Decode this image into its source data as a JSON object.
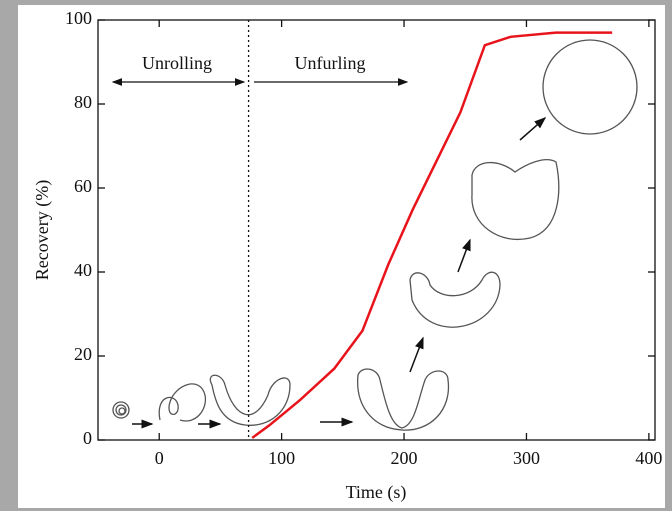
{
  "chart_data": {
    "type": "line",
    "x_label": "Time (s)",
    "y_label": "Recovery (%)",
    "x": [
      76,
      90,
      115,
      143,
      166,
      187,
      207,
      246,
      266,
      287,
      324,
      370
    ],
    "values": [
      0.5,
      3.5,
      9.5,
      17,
      26,
      41.7,
      54.8,
      78,
      94,
      96,
      97,
      97
    ],
    "color": "#e8141b",
    "xlim": [
      -50,
      405
    ],
    "xticks": [
      0,
      100,
      200,
      300,
      400
    ],
    "ylim": [
      0,
      100
    ],
    "yticks": [
      0,
      20,
      40,
      60,
      80,
      100
    ],
    "vline": 73,
    "annotations": [
      "Unrolling",
      "Unfurling"
    ]
  }
}
